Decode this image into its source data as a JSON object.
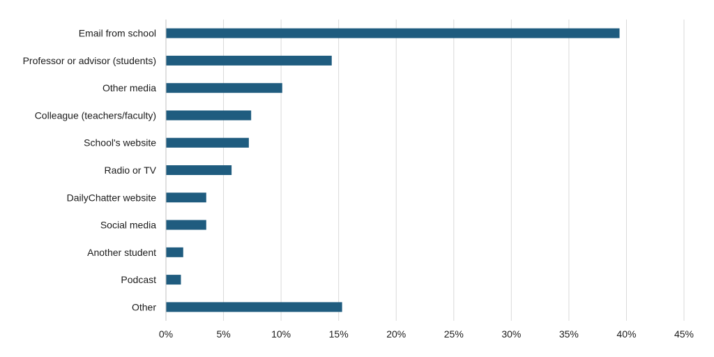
{
  "chart_data": {
    "type": "bar",
    "orientation": "horizontal",
    "title": "",
    "xlabel": "",
    "ylabel": "",
    "categories": [
      "Email from school",
      "Professor or advisor (students)",
      "Other media",
      "Colleague (teachers/faculty)",
      "School's website",
      "Radio or TV",
      "DailyChatter website",
      "Social media",
      "Another student",
      "Podcast",
      "Other"
    ],
    "values": [
      39.4,
      14.4,
      10.1,
      7.4,
      7.2,
      5.7,
      3.5,
      3.5,
      1.5,
      1.3,
      15.3
    ],
    "xlim": [
      0,
      45
    ],
    "ticks": [
      0,
      5,
      10,
      15,
      20,
      25,
      30,
      35,
      40,
      45
    ],
    "tick_labels": [
      "0%",
      "5%",
      "10%",
      "15%",
      "20%",
      "25%",
      "30%",
      "35%",
      "40%",
      "45%"
    ],
    "bar_color": "#1f5c7f",
    "grid": true,
    "legend": "none"
  }
}
